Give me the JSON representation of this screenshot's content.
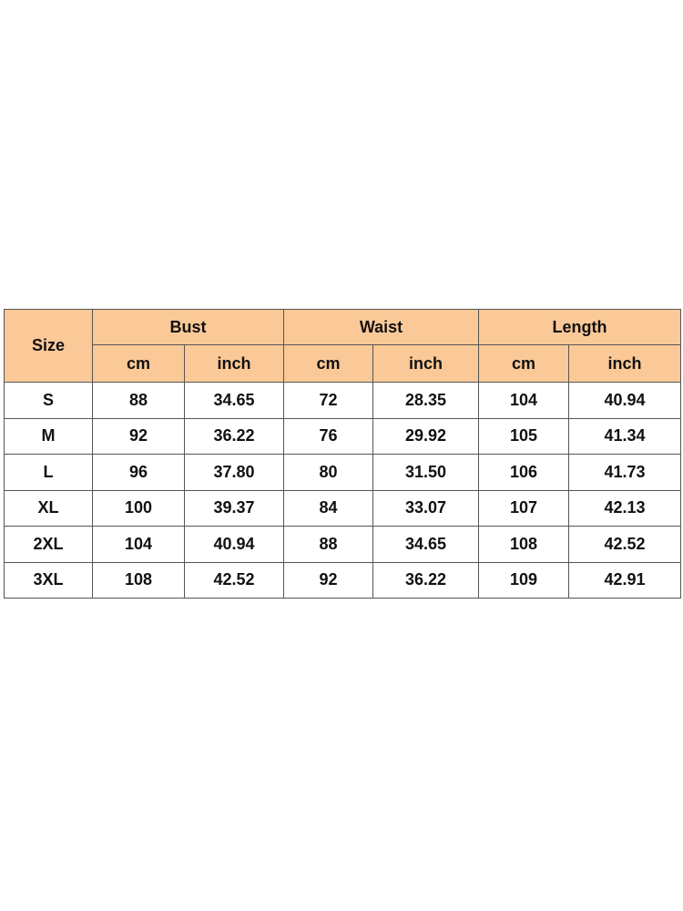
{
  "header": {
    "size_label": "Size",
    "groups": [
      "Bust",
      "Waist",
      "Length"
    ],
    "units": [
      "cm",
      "inch",
      "cm",
      "inch",
      "cm",
      "inch"
    ]
  },
  "rows": [
    [
      "S",
      "88",
      "34.65",
      "72",
      "28.35",
      "104",
      "40.94"
    ],
    [
      "M",
      "92",
      "36.22",
      "76",
      "29.92",
      "105",
      "41.34"
    ],
    [
      "L",
      "96",
      "37.80",
      "80",
      "31.50",
      "106",
      "41.73"
    ],
    [
      "XL",
      "100",
      "39.37",
      "84",
      "33.07",
      "107",
      "42.13"
    ],
    [
      "2XL",
      "104",
      "40.94",
      "88",
      "34.65",
      "108",
      "42.52"
    ],
    [
      "3XL",
      "108",
      "42.52",
      "92",
      "36.22",
      "109",
      "42.91"
    ]
  ],
  "colors": {
    "header_bg": "#fbc997",
    "border": "#555555"
  }
}
